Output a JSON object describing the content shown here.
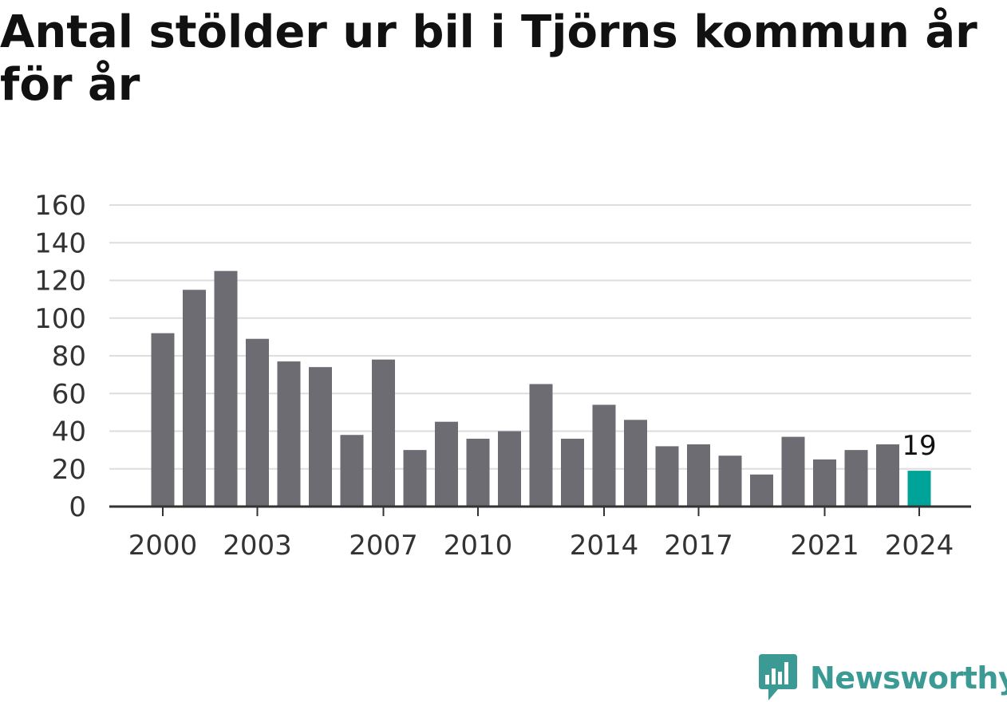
{
  "title": "Antal stölder ur bil i Tjörns kommun år för år",
  "brand": {
    "name": "Newsworthy",
    "color": "#3c9a95",
    "icon": "newsworthy-logo-icon"
  },
  "colors": {
    "bar": "#6d6c72",
    "highlight": "#00a398",
    "grid": "#dddddd",
    "axis": "#333333"
  },
  "chart_data": {
    "type": "bar",
    "title": "Antal stölder ur bil i Tjörns kommun år för år",
    "xlabel": "",
    "ylabel": "",
    "categories": [
      "2000",
      "2001",
      "2002",
      "2003",
      "2004",
      "2005",
      "2006",
      "2007",
      "2008",
      "2009",
      "2010",
      "2011",
      "2012",
      "2013",
      "2014",
      "2015",
      "2016",
      "2017",
      "2018",
      "2019",
      "2020",
      "2021",
      "2022",
      "2023",
      "2024"
    ],
    "values": [
      92,
      115,
      125,
      89,
      77,
      74,
      38,
      78,
      30,
      45,
      36,
      40,
      65,
      36,
      54,
      46,
      32,
      33,
      27,
      17,
      37,
      25,
      30,
      33,
      19
    ],
    "xticks": [
      "2000",
      "2003",
      "2007",
      "2010",
      "2014",
      "2017",
      "2021",
      "2024"
    ],
    "yticks": [
      0,
      20,
      40,
      60,
      80,
      100,
      120,
      140,
      160
    ],
    "ylim": [
      0,
      160
    ],
    "highlight": {
      "category": "2024",
      "label": "19"
    },
    "grid": true,
    "legend": "none"
  }
}
